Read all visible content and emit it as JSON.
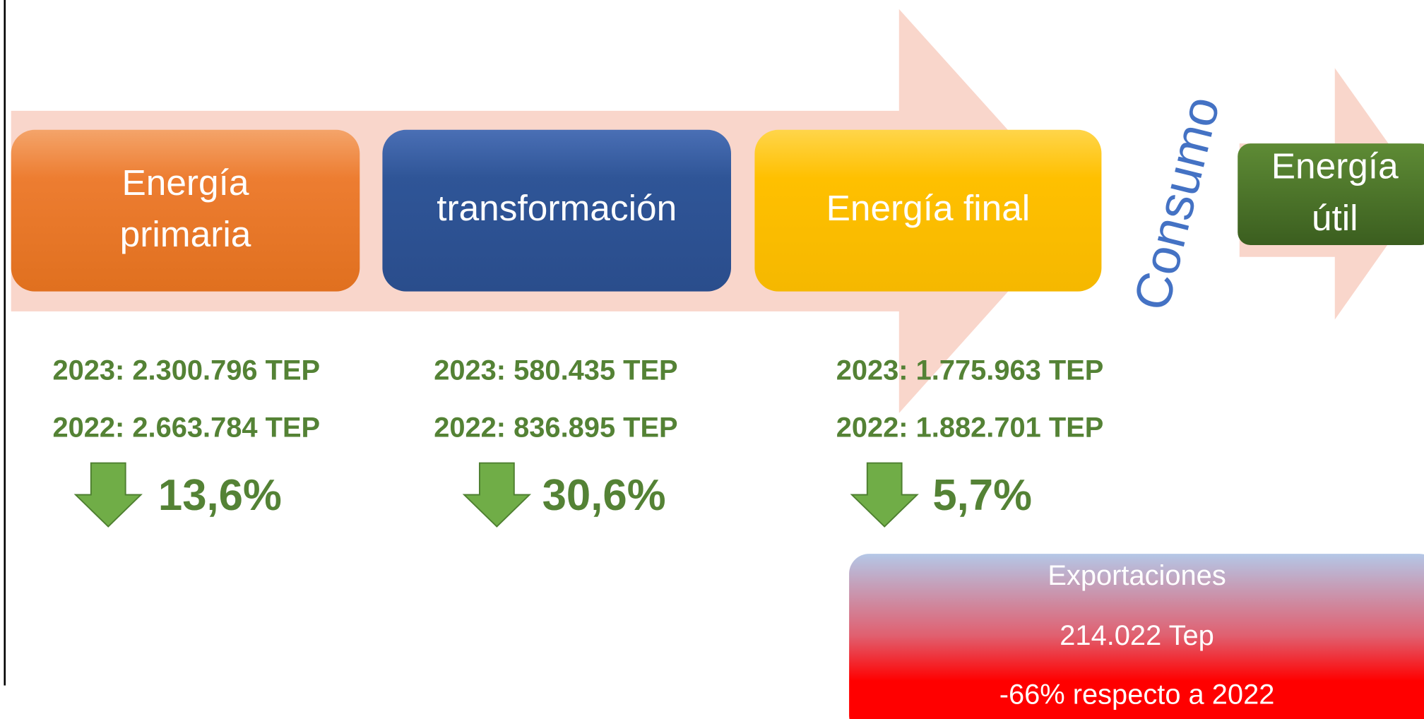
{
  "stages": [
    {
      "label": [
        "Energía",
        "primaria"
      ],
      "year2023": "2023: 2.300.796 TEP",
      "year2022": "2022: 2.663.784 TEP",
      "change": "13,6%"
    },
    {
      "label": [
        "transformación"
      ],
      "year2023": "2023: 580.435 TEP",
      "year2022": "2022: 836.895 TEP",
      "change": "30,6%"
    },
    {
      "label": [
        "Energía final"
      ],
      "year2023": "2023: 1.775.963 TEP",
      "year2022": "2022: 1.882.701 TEP",
      "change": "5,7%"
    }
  ],
  "consumo": "Consumo",
  "util": [
    "Energía",
    "útil"
  ],
  "exports": {
    "title": "Exportaciones",
    "value": "214.022 Tep",
    "change": "-66% respecto a 2022"
  }
}
